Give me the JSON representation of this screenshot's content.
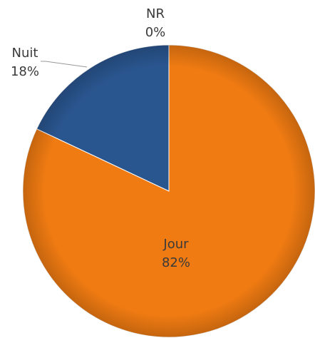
{
  "chart_data": {
    "type": "pie",
    "categories": [
      "Jour",
      "Nuit",
      "NR"
    ],
    "values": [
      82,
      18,
      0
    ],
    "value_labels": [
      "82%",
      "18%",
      "0%"
    ],
    "colors": [
      "#f07b12",
      "#2a5690",
      "#a5a5a5"
    ]
  }
}
